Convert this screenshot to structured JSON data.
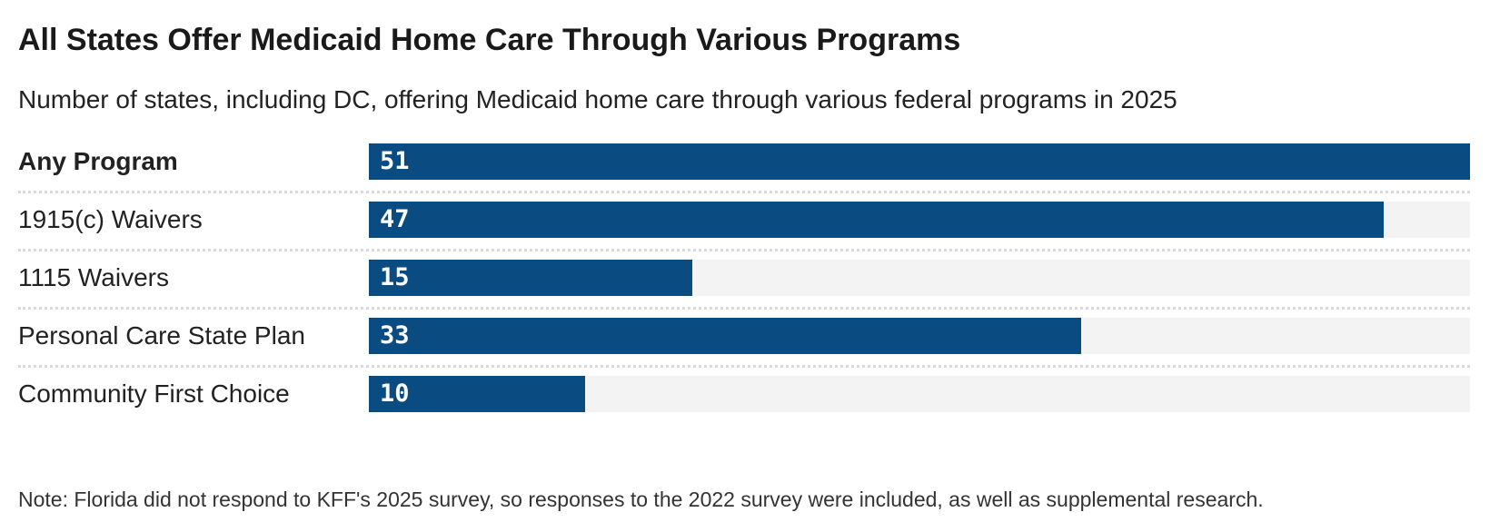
{
  "header": {
    "title": "All States Offer Medicaid Home Care Through Various Programs",
    "subtitle": "Number of states, including DC, offering Medicaid home care through various federal programs in 2025"
  },
  "chart_data": {
    "type": "bar",
    "orientation": "horizontal",
    "title": "All States Offer Medicaid Home Care Through Various Programs",
    "subtitle": "Number of states, including DC, offering Medicaid home care through various federal programs in 2025",
    "categories": [
      "Any Program",
      "1915(c) Waivers",
      "1115 Waivers",
      "Personal Care State Plan",
      "Community First Choice"
    ],
    "values": [
      51,
      47,
      15,
      33,
      10
    ],
    "value_labels": [
      "51",
      "47",
      "15",
      "33",
      "10"
    ],
    "emphasized_category": "Any Program",
    "xlim": [
      0,
      51
    ],
    "grid": "off",
    "legend": "none",
    "bar_color": "#0a4c82",
    "track_color": "#f3f3f3",
    "value_label_color": "#ffffff",
    "separator_style": "dotted"
  },
  "note": "Note: Florida did not respond to KFF's 2025 survey, so responses to the 2022 survey were included, as well as supplemental research."
}
